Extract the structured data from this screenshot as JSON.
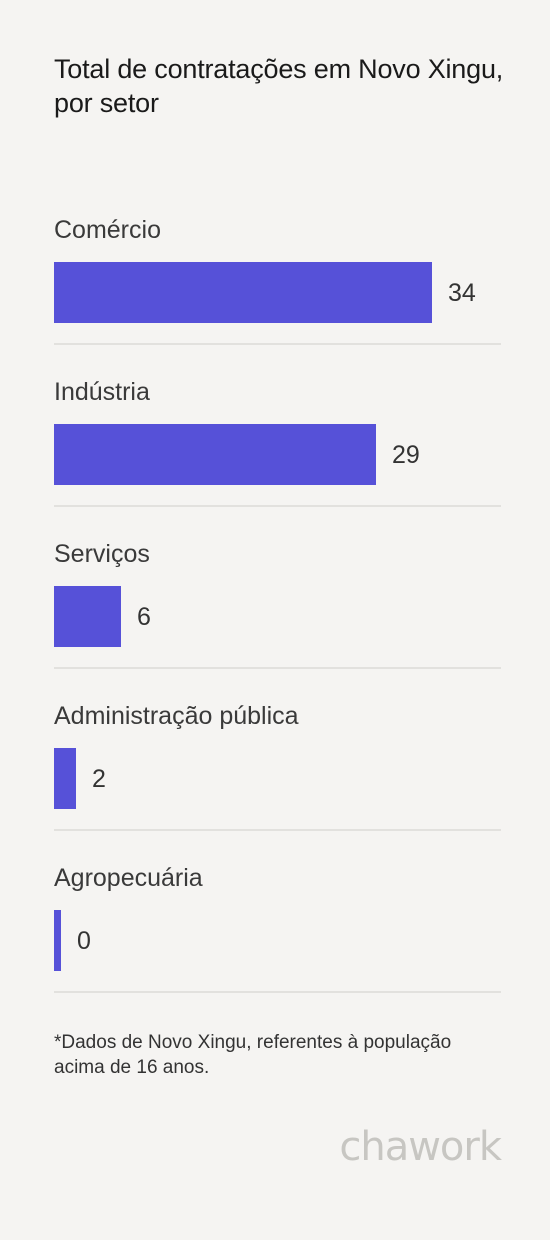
{
  "chart_data": {
    "type": "bar",
    "orientation": "horizontal",
    "title": "Total de contratações em Novo Xingu, por setor",
    "categories": [
      "Comércio",
      "Indústria",
      "Serviços",
      "Administração pública",
      "Agropecuária"
    ],
    "values": [
      34,
      29,
      6,
      2,
      0
    ],
    "value_labels": [
      "34",
      "29",
      "6",
      "2",
      "0"
    ],
    "bar_color": "#5651d8",
    "grid": false,
    "legend": "none"
  },
  "footnote": "*Dados de Novo Xingu, referentes à população acima de 16 anos.",
  "brand": "chawork"
}
